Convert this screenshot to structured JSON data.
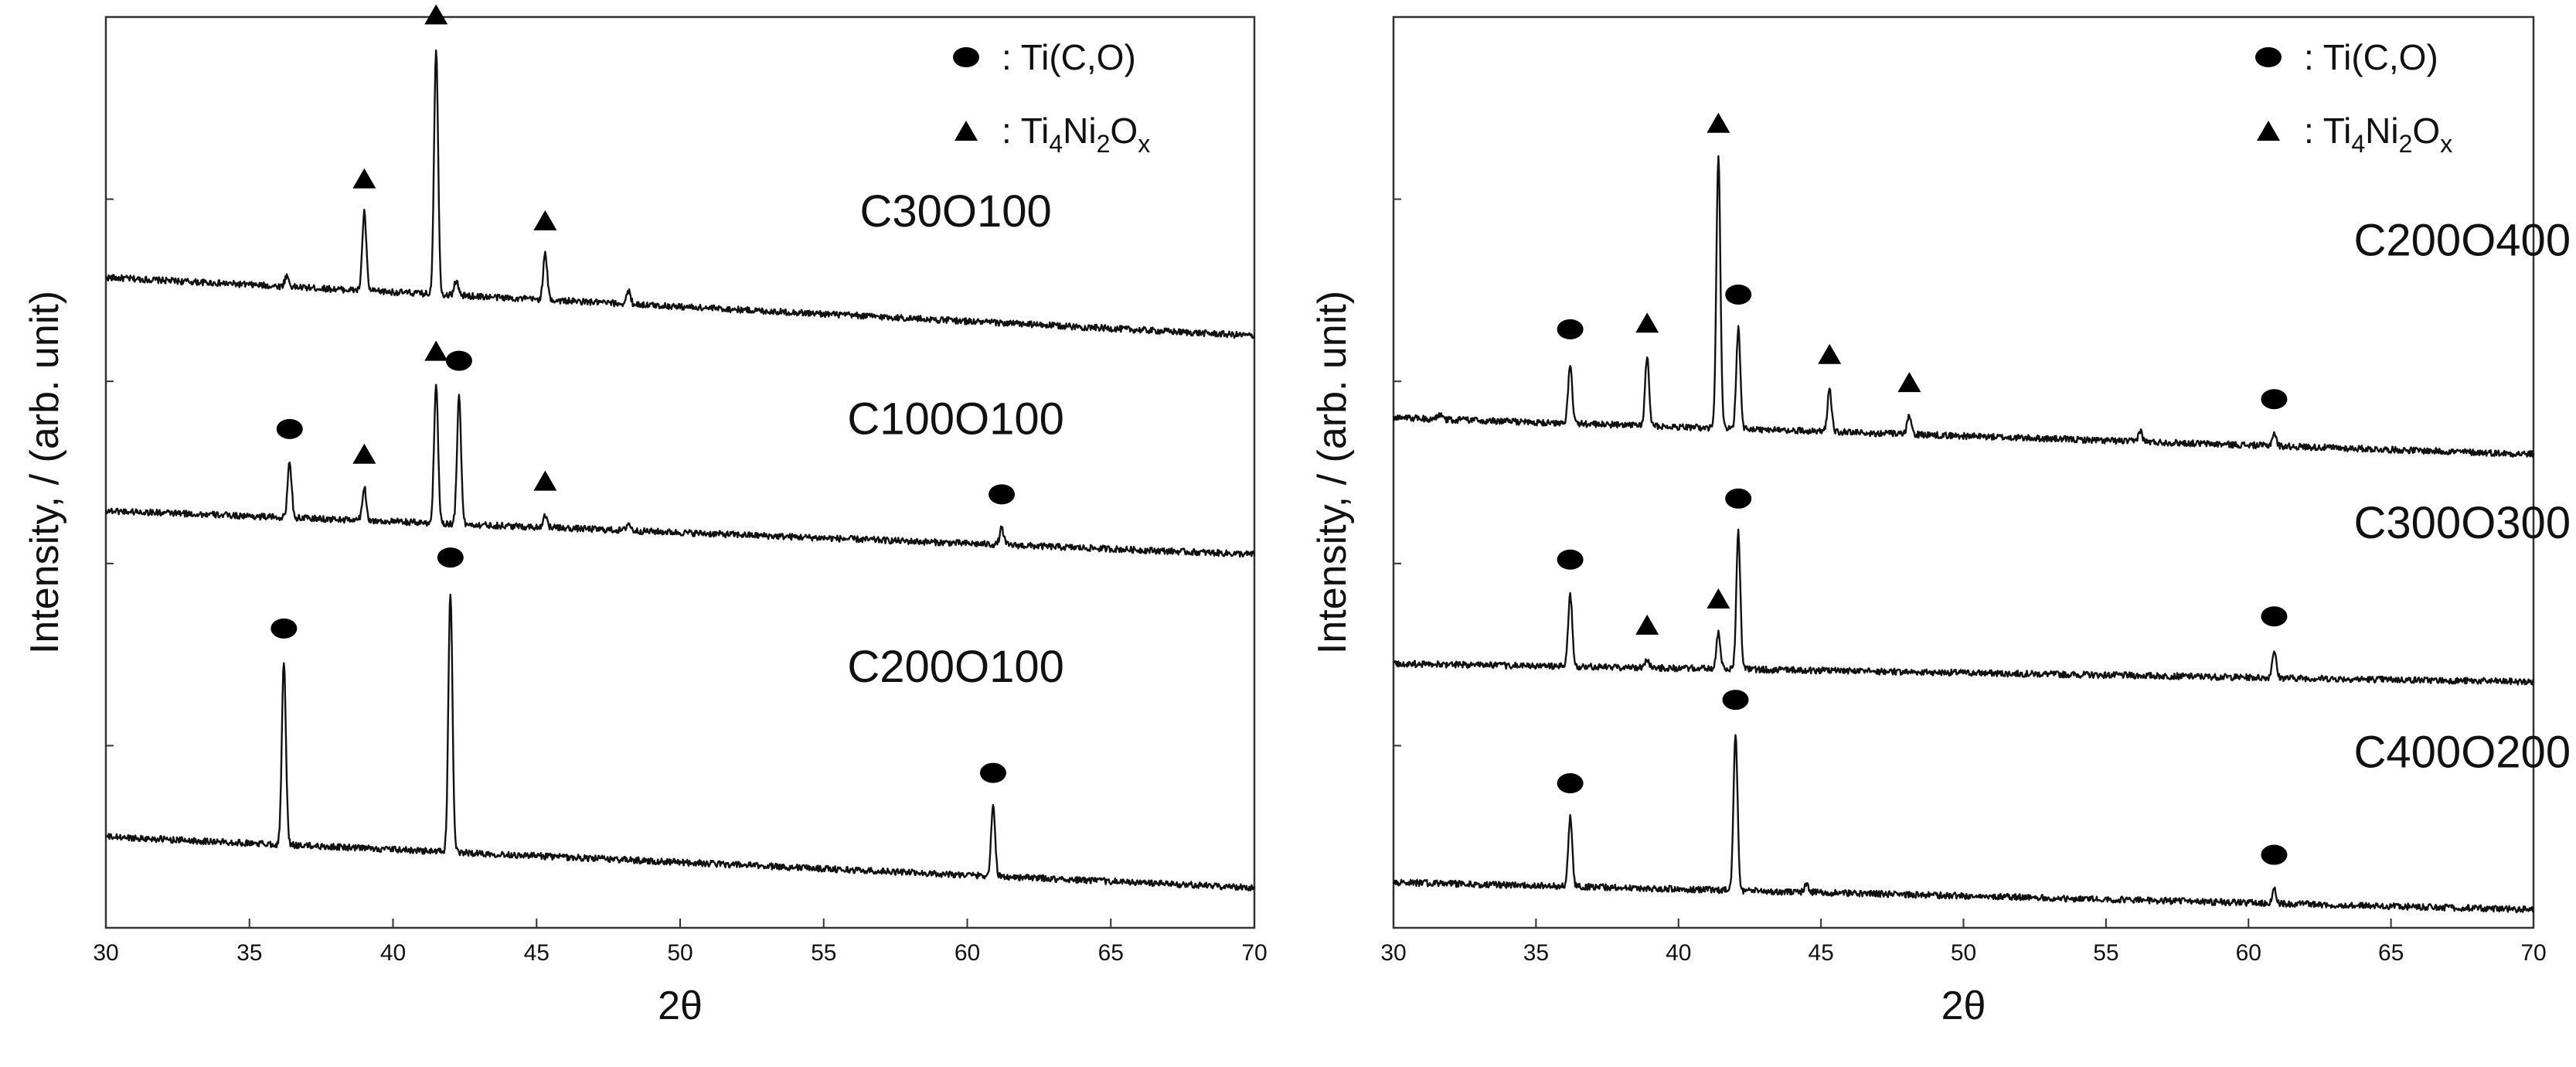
{
  "legend": {
    "circle": {
      "text": "Ti(C,O)"
    },
    "triangle": {
      "base1": "Ti",
      "sub1": "4",
      "base2": "Ni",
      "sub2": "2",
      "base3": "O",
      "sub3": "x"
    },
    "separator": ":"
  },
  "chart_data": [
    {
      "type": "line",
      "xlabel": "2θ",
      "ylabel": "Intensity, / (arb. unit)",
      "xlim": [
        30,
        70
      ],
      "ylim": [
        0,
        5
      ],
      "xticks": [
        30,
        35,
        40,
        45,
        50,
        55,
        60,
        65,
        70
      ],
      "y_ticks_shown": [
        1,
        2,
        3,
        4,
        5
      ],
      "series": [
        {
          "name": "C30O100",
          "baseline": [
            [
              30,
              3.57
            ],
            [
              70,
              3.25
            ]
          ],
          "peaks": [
            {
              "x": 36.3,
              "h": 0.06,
              "marker": "none"
            },
            {
              "x": 39.0,
              "h": 0.43,
              "marker": "triangle"
            },
            {
              "x": 41.5,
              "h": 1.35,
              "marker": "triangle"
            },
            {
              "x": 42.2,
              "h": 0.08,
              "marker": "none"
            },
            {
              "x": 45.3,
              "h": 0.25,
              "marker": "triangle"
            },
            {
              "x": 48.2,
              "h": 0.07,
              "marker": "none"
            }
          ],
          "label_anchor": [
            59.6,
            3.85
          ]
        },
        {
          "name": "C100O100",
          "baseline": [
            [
              30,
              2.29
            ],
            [
              70,
              2.05
            ]
          ],
          "peaks": [
            {
              "x": 36.4,
              "h": 0.3,
              "marker": "circle"
            },
            {
              "x": 39.0,
              "h": 0.18,
              "marker": "triangle"
            },
            {
              "x": 41.5,
              "h": 0.76,
              "marker": "triangle"
            },
            {
              "x": 42.3,
              "h": 0.71,
              "marker": "circle"
            },
            {
              "x": 45.3,
              "h": 0.07,
              "marker": "triangle"
            },
            {
              "x": 48.2,
              "h": 0.04,
              "marker": "none"
            },
            {
              "x": 61.2,
              "h": 0.09,
              "marker": "circle"
            }
          ],
          "label_anchor": [
            59.6,
            2.71
          ]
        },
        {
          "name": "C200O100",
          "baseline": [
            [
              30,
              0.5
            ],
            [
              70,
              0.22
            ]
          ],
          "peaks": [
            {
              "x": 36.2,
              "h": 1.0,
              "marker": "circle"
            },
            {
              "x": 42.0,
              "h": 1.43,
              "marker": "circle"
            },
            {
              "x": 60.9,
              "h": 0.38,
              "marker": "circle"
            }
          ],
          "label_anchor": [
            59.6,
            1.35
          ]
        }
      ]
    },
    {
      "type": "line",
      "xlabel": "2θ",
      "ylabel": "Intensity, / (arb. unit)",
      "xlim": [
        30,
        70
      ],
      "ylim": [
        0,
        5
      ],
      "xticks": [
        30,
        35,
        40,
        45,
        50,
        55,
        60,
        65,
        70
      ],
      "y_ticks_shown": [
        1,
        2,
        3,
        4
      ],
      "series": [
        {
          "name": "C200O400",
          "baseline": [
            [
              30,
              2.8
            ],
            [
              70,
              2.6
            ]
          ],
          "peaks": [
            {
              "x": 31.6,
              "h": 0.03,
              "marker": "none"
            },
            {
              "x": 36.2,
              "h": 0.33,
              "marker": "circle"
            },
            {
              "x": 38.9,
              "h": 0.38,
              "marker": "triangle"
            },
            {
              "x": 41.4,
              "h": 1.49,
              "marker": "triangle"
            },
            {
              "x": 42.1,
              "h": 0.55,
              "marker": "circle"
            },
            {
              "x": 45.3,
              "h": 0.24,
              "marker": "triangle"
            },
            {
              "x": 48.1,
              "h": 0.1,
              "marker": "triangle"
            },
            {
              "x": 56.2,
              "h": 0.06,
              "marker": "none"
            },
            {
              "x": 60.9,
              "h": 0.07,
              "marker": "circle"
            }
          ],
          "label_anchor": [
            67.5,
            3.69
          ]
        },
        {
          "name": "C300O300",
          "baseline": [
            [
              30,
              1.45
            ],
            [
              70,
              1.35
            ]
          ],
          "peaks": [
            {
              "x": 36.2,
              "h": 0.4,
              "marker": "circle"
            },
            {
              "x": 38.9,
              "h": 0.05,
              "marker": "triangle"
            },
            {
              "x": 41.4,
              "h": 0.2,
              "marker": "triangle"
            },
            {
              "x": 42.1,
              "h": 0.75,
              "marker": "circle"
            },
            {
              "x": 60.9,
              "h": 0.15,
              "marker": "circle"
            }
          ],
          "label_anchor": [
            67.5,
            2.14
          ]
        },
        {
          "name": "C400O200",
          "baseline": [
            [
              30,
              0.25
            ],
            [
              70,
              0.1
            ]
          ],
          "peaks": [
            {
              "x": 36.2,
              "h": 0.38,
              "marker": "circle"
            },
            {
              "x": 42.0,
              "h": 0.86,
              "marker": "circle"
            },
            {
              "x": 44.5,
              "h": 0.04,
              "marker": "none"
            },
            {
              "x": 60.9,
              "h": 0.08,
              "marker": "circle"
            }
          ],
          "label_anchor": [
            67.5,
            0.88
          ]
        }
      ]
    }
  ]
}
